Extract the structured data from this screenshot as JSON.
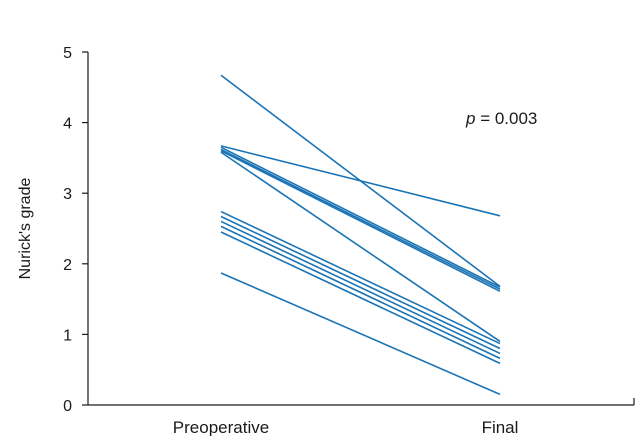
{
  "chart_data": {
    "type": "line",
    "categories": [
      "Preoperative",
      "Final"
    ],
    "ylabel": "Nurick's grade",
    "xlabel": "",
    "ylim": [
      0,
      5
    ],
    "yticks": [
      "0",
      "1",
      "2",
      "3",
      "4",
      "5"
    ],
    "annotation": {
      "italic": "p",
      "rest": " = 0.003"
    },
    "line_color": "#1b74b4",
    "axis_color": "#1a1a1a",
    "series": [
      {
        "values": [
          4.67,
          1.68
        ]
      },
      {
        "values": [
          3.67,
          2.68
        ]
      },
      {
        "values": [
          3.65,
          1.67
        ]
      },
      {
        "values": [
          3.62,
          1.64
        ]
      },
      {
        "values": [
          3.6,
          1.61
        ]
      },
      {
        "values": [
          3.58,
          0.9
        ]
      },
      {
        "values": [
          2.74,
          0.87
        ]
      },
      {
        "values": [
          2.67,
          0.8
        ]
      },
      {
        "values": [
          2.6,
          0.73
        ]
      },
      {
        "values": [
          2.53,
          0.66
        ]
      },
      {
        "values": [
          2.45,
          0.59
        ]
      },
      {
        "values": [
          1.87,
          0.15
        ]
      }
    ]
  }
}
